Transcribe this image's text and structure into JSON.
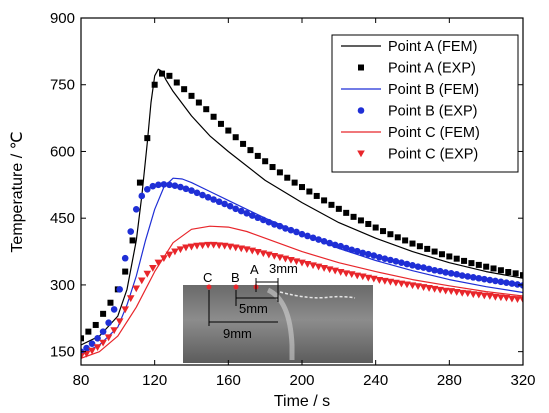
{
  "chart_data": {
    "type": "line",
    "xlabel": "Time / s",
    "ylabel": "Temperature / ℃",
    "xlim": [
      80,
      320
    ],
    "ylim": [
      120,
      900
    ],
    "xticks": [
      80,
      120,
      160,
      200,
      240,
      280,
      320
    ],
    "yticks": [
      150,
      300,
      450,
      600,
      750,
      900
    ],
    "grid": false,
    "legend_position": "top-right",
    "series": [
      {
        "name": "Point A (FEM)",
        "style": "line",
        "color": "#000000",
        "x": [
          80,
          90,
          100,
          105,
          110,
          113,
          116,
          118,
          120,
          122,
          124,
          126,
          130,
          140,
          150,
          160,
          180,
          200,
          220,
          240,
          260,
          280,
          300,
          320
        ],
        "y": [
          165,
          185,
          230,
          290,
          400,
          500,
          620,
          710,
          770,
          785,
          780,
          762,
          735,
          680,
          635,
          600,
          535,
          485,
          440,
          405,
          375,
          350,
          330,
          315
        ]
      },
      {
        "name": "Point A (EXP)",
        "style": "square",
        "color": "#000000",
        "x": [
          80,
          84,
          88,
          92,
          96,
          100,
          104,
          108,
          112,
          116,
          120,
          124,
          128,
          132,
          136,
          140,
          144,
          148,
          152,
          156,
          160,
          164,
          168,
          172,
          176,
          180,
          184,
          188,
          192,
          196,
          200,
          204,
          208,
          212,
          216,
          220,
          224,
          228,
          232,
          236,
          240,
          244,
          248,
          252,
          256,
          260,
          264,
          268,
          272,
          276,
          280,
          284,
          288,
          292,
          296,
          300,
          304,
          308,
          312,
          316,
          320
        ],
        "y": [
          180,
          195,
          210,
          235,
          260,
          290,
          330,
          400,
          530,
          630,
          750,
          775,
          770,
          755,
          740,
          725,
          710,
          695,
          678,
          662,
          647,
          632,
          617,
          603,
          590,
          578,
          565,
          553,
          541,
          530,
          520,
          510,
          500,
          490,
          480,
          471,
          462,
          453,
          445,
          437,
          429,
          421,
          414,
          407,
          400,
          393,
          387,
          381,
          375,
          369,
          364,
          359,
          354,
          349,
          345,
          341,
          337,
          333,
          329,
          326,
          322
        ]
      },
      {
        "name": "Point B (FEM)",
        "style": "line",
        "color": "#1f2fd6",
        "x": [
          80,
          90,
          100,
          105,
          110,
          115,
          120,
          125,
          130,
          135,
          140,
          150,
          160,
          180,
          200,
          220,
          240,
          260,
          280,
          300,
          320
        ],
        "y": [
          145,
          165,
          205,
          255,
          320,
          400,
          470,
          520,
          540,
          538,
          530,
          510,
          490,
          450,
          415,
          382,
          355,
          332,
          312,
          296,
          283
        ]
      },
      {
        "name": "Point B (EXP)",
        "style": "circle",
        "color": "#1f2fd6",
        "x": [
          80,
          83,
          86,
          89,
          92,
          95,
          98,
          101,
          104,
          107,
          110,
          113,
          116,
          119,
          122,
          125,
          128,
          131,
          134,
          137,
          140,
          143,
          146,
          149,
          152,
          155,
          158,
          161,
          164,
          167,
          170,
          173,
          176,
          179,
          182,
          185,
          188,
          191,
          194,
          197,
          200,
          203,
          206,
          209,
          212,
          215,
          218,
          221,
          224,
          227,
          230,
          233,
          236,
          239,
          242,
          245,
          248,
          251,
          254,
          257,
          260,
          263,
          266,
          269,
          272,
          275,
          278,
          281,
          284,
          287,
          290,
          293,
          296,
          299,
          302,
          305,
          308,
          311,
          314,
          317,
          320
        ],
        "y": [
          150,
          158,
          168,
          180,
          195,
          215,
          245,
          290,
          360,
          420,
          470,
          500,
          515,
          522,
          525,
          526,
          525,
          523,
          520,
          516,
          512,
          507,
          502,
          497,
          492,
          487,
          482,
          477,
          471,
          466,
          461,
          456,
          451,
          446,
          441,
          436,
          432,
          427,
          423,
          419,
          414,
          410,
          406,
          402,
          398,
          394,
          390,
          387,
          383,
          379,
          376,
          372,
          369,
          366,
          362,
          359,
          356,
          353,
          350,
          347,
          344,
          341,
          339,
          336,
          333,
          331,
          328,
          326,
          324,
          321,
          319,
          317,
          315,
          313,
          311,
          309,
          307,
          305,
          303,
          301,
          299
        ]
      },
      {
        "name": "Point C (FEM)",
        "style": "line",
        "color": "#e8262b",
        "x": [
          80,
          90,
          100,
          110,
          120,
          130,
          140,
          150,
          160,
          170,
          180,
          200,
          220,
          240,
          260,
          280,
          300,
          320
        ],
        "y": [
          135,
          150,
          185,
          250,
          330,
          395,
          425,
          432,
          430,
          420,
          405,
          375,
          350,
          330,
          312,
          298,
          285,
          275
        ]
      },
      {
        "name": "Point C (EXP)",
        "style": "triangle-down",
        "color": "#e8262b",
        "x": [
          80,
          83,
          86,
          89,
          92,
          95,
          98,
          101,
          104,
          107,
          110,
          113,
          116,
          119,
          122,
          125,
          128,
          131,
          134,
          137,
          140,
          143,
          146,
          149,
          152,
          155,
          158,
          161,
          164,
          167,
          170,
          173,
          176,
          179,
          182,
          185,
          188,
          191,
          194,
          197,
          200,
          203,
          206,
          209,
          212,
          215,
          218,
          221,
          224,
          227,
          230,
          233,
          236,
          239,
          242,
          245,
          248,
          251,
          254,
          257,
          260,
          263,
          266,
          269,
          272,
          275,
          278,
          281,
          284,
          287,
          290,
          293,
          296,
          299,
          302,
          305,
          308,
          311,
          314,
          317,
          320
        ],
        "y": [
          140,
          145,
          152,
          160,
          170,
          182,
          198,
          218,
          245,
          270,
          292,
          310,
          325,
          338,
          350,
          360,
          368,
          375,
          380,
          384,
          386,
          388,
          389,
          390,
          390,
          389,
          388,
          386,
          384,
          382,
          380,
          377,
          374,
          371,
          368,
          365,
          362,
          359,
          356,
          353,
          350,
          347,
          344,
          341,
          338,
          335,
          332,
          329,
          326,
          324,
          321,
          319,
          316,
          314,
          311,
          309,
          307,
          305,
          303,
          301,
          299,
          297,
          295,
          293,
          291,
          289,
          287,
          286,
          284,
          282,
          281,
          279,
          278,
          276,
          275,
          273,
          272,
          271,
          269,
          268,
          267
        ]
      }
    ],
    "inset": {
      "point_labels": [
        "C",
        "B",
        "A"
      ],
      "dimension_labels": [
        "3mm",
        "5mm",
        "9mm"
      ]
    }
  }
}
